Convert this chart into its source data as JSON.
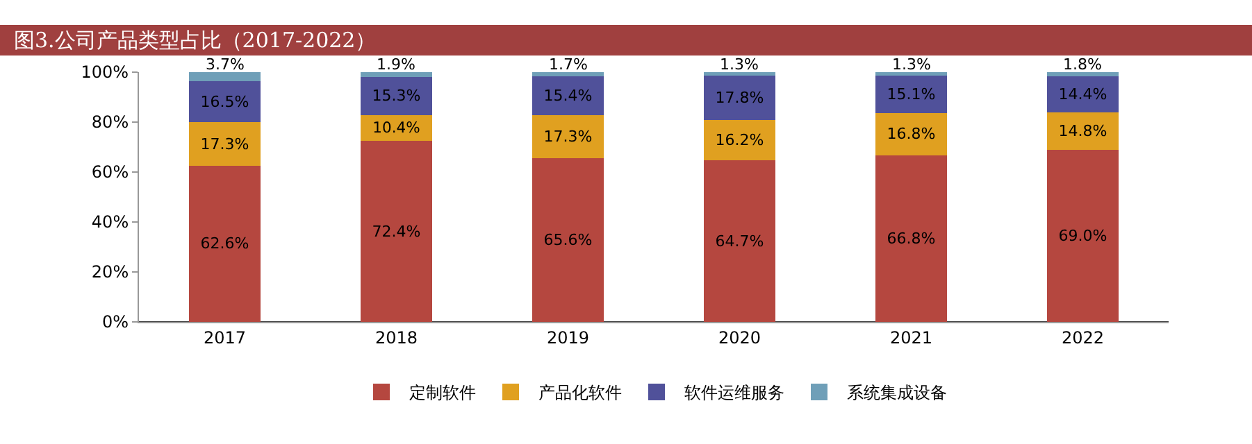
{
  "chart_data": {
    "type": "bar",
    "title": "图3.公司产品类型占比（2017-2022）",
    "stacked": true,
    "data_labels": true,
    "legend": "bottom",
    "grid": false,
    "categories": [
      "2017",
      "2018",
      "2019",
      "2020",
      "2021",
      "2022"
    ],
    "ylim": [
      0,
      100
    ],
    "yticks": [
      {
        "value": 0,
        "label": "0%"
      },
      {
        "value": 20,
        "label": "20%"
      },
      {
        "value": 40,
        "label": "40%"
      },
      {
        "value": 60,
        "label": "60%"
      },
      {
        "value": 80,
        "label": "80%"
      },
      {
        "value": 100,
        "label": "100%"
      }
    ],
    "series": [
      {
        "name": "定制软件",
        "color": "#b5473f",
        "values": [
          62.6,
          72.4,
          65.6,
          64.7,
          66.8,
          69.0
        ],
        "value_labels": [
          "62.6%",
          "72.4%",
          "65.6%",
          "64.7%",
          "66.8%",
          "69.0%"
        ]
      },
      {
        "name": "产品化软件",
        "color": "#e0a020",
        "values": [
          17.3,
          10.4,
          17.3,
          16.2,
          16.8,
          14.8
        ],
        "value_labels": [
          "17.3%",
          "10.4%",
          "17.3%",
          "16.2%",
          "16.8%",
          "14.8%"
        ]
      },
      {
        "name": "软件运维服务",
        "color": "#50519a",
        "values": [
          16.5,
          15.3,
          15.4,
          17.8,
          15.1,
          14.4
        ],
        "value_labels": [
          "16.5%",
          "15.3%",
          "15.4%",
          "17.8%",
          "15.1%",
          "14.4%"
        ]
      },
      {
        "name": "系统集成设备",
        "color": "#6f9fb8",
        "values": [
          3.7,
          1.9,
          1.7,
          1.3,
          1.3,
          1.8
        ],
        "value_labels": [
          "3.7%",
          "1.9%",
          "1.7%",
          "1.3%",
          "1.3%",
          "1.8%"
        ]
      }
    ]
  }
}
